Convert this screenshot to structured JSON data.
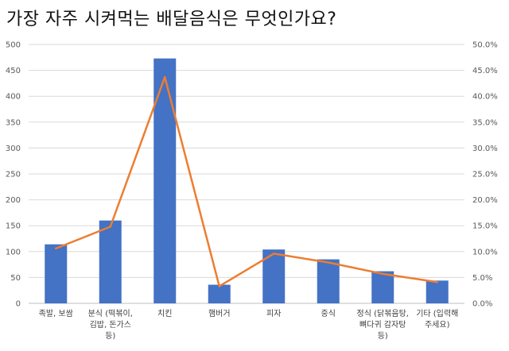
{
  "chart_data": {
    "type": "bar",
    "title": "가장 자주 시켜먹는 배달음식은 무엇인가요?",
    "categories": [
      [
        "족발, 보쌈"
      ],
      [
        "분식 (떡볶이,",
        "김밥, 돈가스",
        "등)"
      ],
      [
        "치킨"
      ],
      [
        "햄버거"
      ],
      [
        "피자"
      ],
      [
        "중식"
      ],
      [
        "정식 (닭볶음탕,",
        "뼈다귀 감자탕",
        "등)"
      ],
      [
        "기타 (입력해",
        "주세요)"
      ]
    ],
    "series": [
      {
        "type": "bar",
        "axis": "left",
        "color": "#4472C4",
        "values": [
          114,
          160,
          473,
          36,
          104,
          85,
          62,
          44
        ]
      },
      {
        "type": "line",
        "axis": "right",
        "color": "#ED7D31",
        "values": [
          10.6,
          14.8,
          43.7,
          3.3,
          9.6,
          7.9,
          5.7,
          4.1
        ]
      }
    ],
    "y_left": {
      "min": 0,
      "max": 500,
      "step": 50,
      "ticks": [
        "0",
        "50",
        "100",
        "150",
        "200",
        "250",
        "300",
        "350",
        "400",
        "450",
        "500"
      ]
    },
    "y_right": {
      "min": 0,
      "max": 50,
      "step": 5,
      "ticks": [
        "0.0%",
        "5.0%",
        "10.0%",
        "15.0%",
        "20.0%",
        "25.0%",
        "30.0%",
        "35.0%",
        "40.0%",
        "45.0%",
        "50.0%"
      ]
    },
    "grid": true,
    "legend": "none"
  }
}
